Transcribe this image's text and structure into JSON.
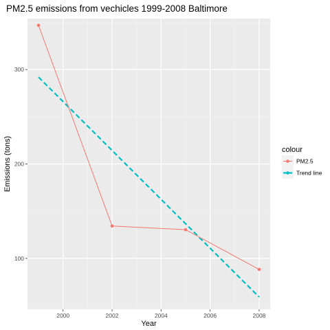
{
  "chart_data": {
    "type": "line",
    "title": "PM2.5 emissions from vechicles 1999-2008 Baltimore",
    "xlabel": "Year",
    "ylabel": "Emissions (tons)",
    "xlim": [
      1998.55,
      2008.45
    ],
    "ylim": [
      46,
      354
    ],
    "x_ticks": [
      2000,
      2002,
      2004,
      2006,
      2008
    ],
    "x_tick_labels": [
      "2000",
      "2002",
      "2004",
      "2006",
      "2008"
    ],
    "y_ticks": [
      100,
      200,
      300
    ],
    "y_tick_labels": [
      "100",
      "200",
      "300"
    ],
    "grid": true,
    "legend": {
      "title": "colour",
      "position": "right",
      "entries": [
        "PM2.5",
        "Trend line"
      ]
    },
    "series": [
      {
        "name": "PM2.5",
        "style": "solid-with-points",
        "color": "#F8766D",
        "x": [
          1999,
          2002,
          2005,
          2008
        ],
        "y": [
          346.8,
          134.3,
          130.4,
          88.3
        ]
      },
      {
        "name": "Trend line",
        "style": "dashed",
        "color": "#00BFC4",
        "x": [
          1999,
          2008
        ],
        "y": [
          292,
          59
        ]
      }
    ]
  }
}
